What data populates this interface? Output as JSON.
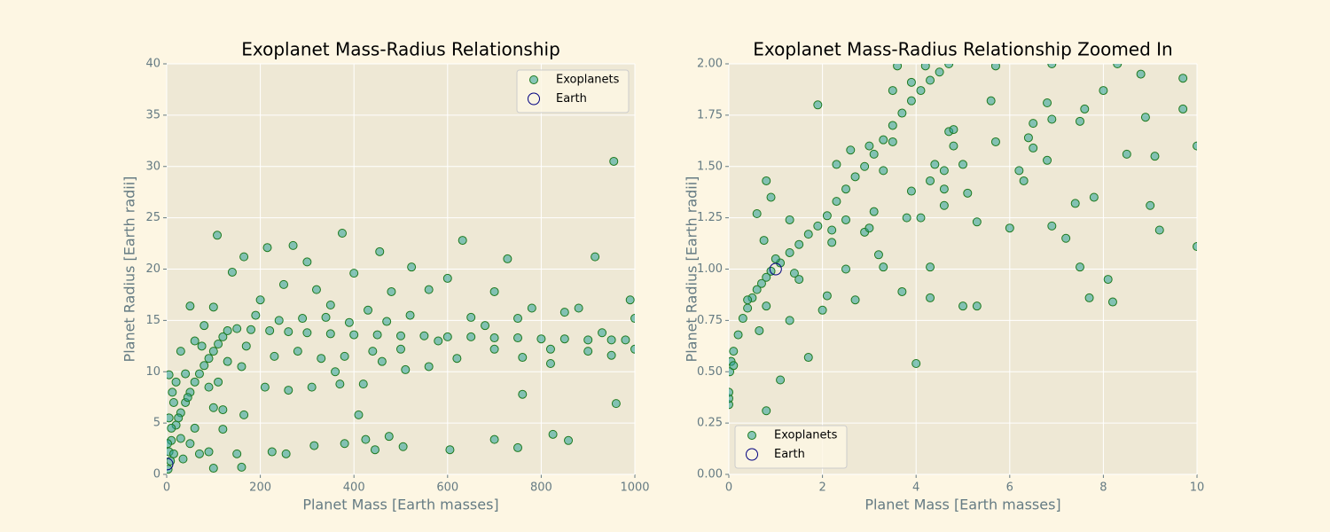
{
  "chart_data": [
    {
      "type": "scatter",
      "title": "Exoplanet Mass-Radius Relationship",
      "xlabel": "Planet Mass [Earth masses]",
      "ylabel": "Planet Radius [Earth radii]",
      "xlim": [
        0,
        1000
      ],
      "ylim": [
        0,
        40
      ],
      "xticks": [
        0,
        200,
        400,
        600,
        800,
        1000
      ],
      "yticks": [
        0,
        5,
        10,
        15,
        20,
        25,
        30,
        35,
        40
      ],
      "grid": true,
      "legend": "upper right",
      "series": [
        {
          "name": "Exoplanets",
          "color": "#2aa198",
          "edgecolor": "#1e7a1e",
          "x": [
            5,
            10,
            20,
            30,
            40,
            50,
            60,
            70,
            80,
            90,
            100,
            110,
            120,
            130,
            150,
            180,
            220,
            260,
            300,
            350,
            400,
            450,
            500,
            550,
            600,
            650,
            700,
            750,
            800,
            850,
            900,
            950,
            980,
            108,
            955,
            375,
            270,
            215,
            632,
            728,
            915,
            165,
            300,
            523,
            455,
            400,
            600,
            140,
            250,
            320,
            480,
            560,
            700,
            780,
            880,
            990,
            50,
            100,
            200,
            350,
            430,
            520,
            650,
            750,
            850,
            1000,
            30,
            60,
            80,
            130,
            170,
            230,
            280,
            330,
            380,
            440,
            500,
            560,
            620,
            700,
            760,
            820,
            900,
            950,
            1000,
            110,
            160,
            210,
            260,
            310,
            370,
            420,
            360,
            460,
            510,
            40,
            20,
            5,
            90,
            100,
            120,
            165,
            410,
            760,
            960,
            15,
            25,
            10,
            30,
            50,
            70,
            90,
            120,
            150,
            160,
            100,
            225,
            255,
            315,
            380,
            425,
            445,
            475,
            505,
            605,
            700,
            750,
            825,
            858,
            8,
            15,
            3,
            35,
            60,
            5,
            2,
            12,
            45,
            75,
            190,
            240,
            290,
            340,
            390,
            470,
            580,
            680,
            820,
            930
          ],
          "y": [
            2.2,
            3.3,
            4.8,
            6,
            7,
            8,
            9,
            9.8,
            10.6,
            11.3,
            12,
            12.7,
            13.4,
            14,
            14.2,
            14.1,
            14,
            13.9,
            13.8,
            13.7,
            13.6,
            13.6,
            13.5,
            13.5,
            13.4,
            13.4,
            13.3,
            13.3,
            13.2,
            13.2,
            13.1,
            13.1,
            13.1,
            23.3,
            30.5,
            23.5,
            22.3,
            22.1,
            22.8,
            21,
            21.2,
            21.2,
            20.7,
            20.2,
            21.7,
            19.6,
            19.1,
            19.7,
            18.5,
            18,
            17.8,
            18,
            17.8,
            16.2,
            16.2,
            17,
            16.4,
            16.3,
            17,
            16.5,
            16,
            15.5,
            15.3,
            15.2,
            15.8,
            15.2,
            12,
            13,
            14.5,
            11,
            12.5,
            11.5,
            12,
            11.3,
            11.5,
            12,
            12.2,
            10.5,
            11.3,
            12.2,
            11.4,
            10.8,
            12,
            11.6,
            12.2,
            9,
            10.5,
            8.5,
            8.2,
            8.5,
            8.8,
            8.8,
            10,
            11,
            10.2,
            9.8,
            9,
            9.7,
            8.5,
            6.5,
            6.3,
            5.8,
            5.8,
            7.8,
            6.9,
            7,
            5.5,
            4.5,
            3.5,
            3,
            2,
            2.2,
            4.4,
            2,
            0.7,
            0.6,
            2.2,
            2,
            2.8,
            3,
            3.4,
            2.4,
            3.7,
            2.7,
            2.4,
            3.4,
            2.6,
            3.9,
            3.3,
            1.3,
            2,
            0.5,
            1.5,
            4.5,
            5.5,
            3,
            8,
            7.5,
            12.5,
            15.5,
            15,
            15.2,
            15.3,
            14.8,
            14.9,
            13,
            14.5,
            12.2,
            13.8
          ]
        },
        {
          "name": "Earth",
          "color": "none",
          "edgecolor": "#000080",
          "x": [
            1
          ],
          "y": [
            1
          ]
        }
      ]
    },
    {
      "type": "scatter",
      "title": "Exoplanet Mass-Radius Relationship Zoomed In",
      "xlabel": "Planet Mass [Earth masses]",
      "ylabel": "Planet Radius [Earth radii]",
      "xlim": [
        0,
        10
      ],
      "ylim": [
        0,
        2
      ],
      "xticks": [
        0,
        2,
        4,
        6,
        8,
        10
      ],
      "yticks": [
        {
          "value": 0,
          "label": "0.00"
        },
        {
          "value": 0.25,
          "label": "0.25"
        },
        {
          "value": 0.5,
          "label": "0.50"
        },
        {
          "value": 0.75,
          "label": "0.75"
        },
        {
          "value": 1,
          "label": "1.00"
        },
        {
          "value": 1.25,
          "label": "1.25"
        },
        {
          "value": 1.5,
          "label": "1.50"
        },
        {
          "value": 1.75,
          "label": "1.75"
        },
        {
          "value": 2,
          "label": "2.00"
        }
      ],
      "grid": true,
      "legend": "lower left",
      "series": [
        {
          "name": "Exoplanets",
          "color": "#2aa198",
          "edgecolor": "#1e7a1e",
          "x": [
            0.02,
            0.05,
            0.1,
            0.2,
            0.3,
            0.4,
            0.5,
            0.6,
            0.7,
            0.8,
            0.9,
            1.1,
            1.3,
            1.5,
            1.7,
            1.9,
            2.1,
            2.3,
            2.5,
            2.7,
            2.9,
            3.1,
            3.3,
            3.5,
            3.7,
            3.9,
            4.1,
            4.3,
            4.5,
            4.7,
            0,
            0,
            0,
            0.1,
            0.6,
            0.8,
            0.9,
            0.75,
            0.8,
            0.65,
            0.8,
            1.1,
            1.3,
            1.3,
            1.4,
            1.7,
            1.9,
            2.0,
            2.1,
            2.2,
            2.3,
            2.5,
            2.7,
            2.9,
            3.0,
            3.1,
            3.2,
            3.3,
            3.5,
            3.7,
            3.8,
            3.9,
            4.0,
            4.1,
            4.3,
            4.3,
            4.4,
            4.6,
            4.8,
            5.0,
            5.0,
            5.1,
            5.3,
            5.3,
            5.6,
            5.7,
            6.0,
            6.2,
            6.3,
            6.4,
            6.5,
            6.5,
            6.8,
            6.8,
            6.9,
            6.9,
            7.2,
            7.4,
            7.5,
            7.5,
            7.6,
            7.7,
            7.8,
            8.0,
            8.1,
            8.2,
            8.5,
            8.8,
            8.9,
            9.0,
            9.1,
            9.2,
            9.7,
            9.7,
            10,
            10,
            3.6,
            4.2,
            5.7,
            8.3,
            6.9,
            2.6,
            3.3,
            2.2,
            1.5,
            0.4,
            1.0,
            4.6,
            4.6,
            3.9,
            3.0,
            2.5,
            4.3,
            4.7,
            3.5,
            4.8
          ],
          "y": [
            0.5,
            0.55,
            0.6,
            0.68,
            0.76,
            0.81,
            0.86,
            0.9,
            0.93,
            0.96,
            0.99,
            1.03,
            1.08,
            1.12,
            1.17,
            1.21,
            1.26,
            1.33,
            1.39,
            1.45,
            1.5,
            1.56,
            1.63,
            1.7,
            1.76,
            1.82,
            1.87,
            1.92,
            1.96,
            2.0,
            0.34,
            0.37,
            0.4,
            0.53,
            1.27,
            1.43,
            1.35,
            1.14,
            0.82,
            0.7,
            0.31,
            0.46,
            0.75,
            1.24,
            0.98,
            0.57,
            1.8,
            0.8,
            0.87,
            1.13,
            1.51,
            1.0,
            0.85,
            1.18,
            1.6,
            1.28,
            1.07,
            1.01,
            1.87,
            0.89,
            1.25,
            1.38,
            0.54,
            1.25,
            0.86,
            1.01,
            1.51,
            1.39,
            1.6,
            0.82,
            1.51,
            1.37,
            0.82,
            1.23,
            1.82,
            1.62,
            1.2,
            1.48,
            1.43,
            1.64,
            1.59,
            1.71,
            1.81,
            1.53,
            1.21,
            1.73,
            1.15,
            1.32,
            1.72,
            1.01,
            1.78,
            0.86,
            1.35,
            1.87,
            0.95,
            0.84,
            1.56,
            1.95,
            1.74,
            1.31,
            1.55,
            1.19,
            1.93,
            1.78,
            1.6,
            1.11,
            1.99,
            1.99,
            1.99,
            2.0,
            2.0,
            1.58,
            1.48,
            1.19,
            0.95,
            0.85,
            1.05,
            1.31,
            1.48,
            1.91,
            1.2,
            1.24,
            1.43,
            1.67,
            1.62,
            1.68
          ]
        },
        {
          "name": "Earth",
          "color": "none",
          "edgecolor": "#000080",
          "x": [
            1
          ],
          "y": [
            1
          ]
        }
      ]
    }
  ]
}
